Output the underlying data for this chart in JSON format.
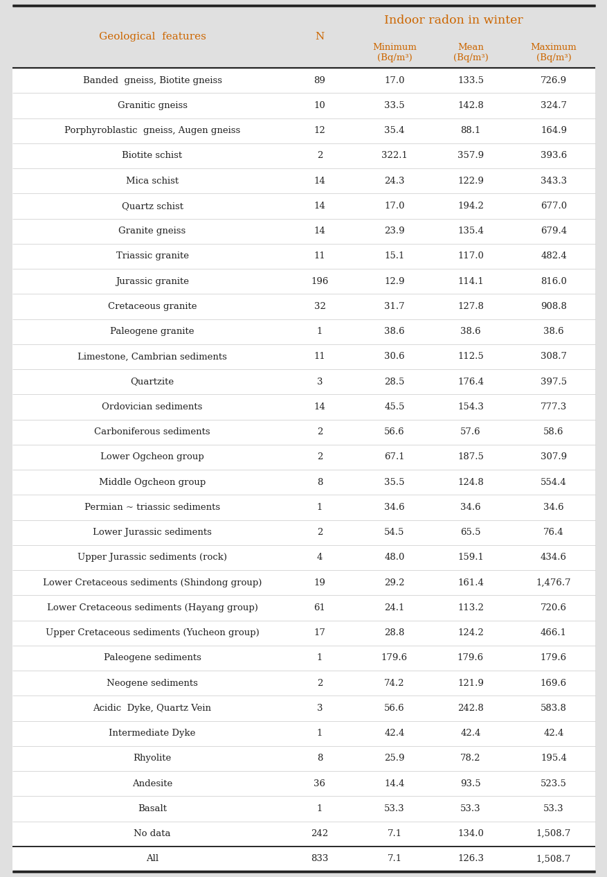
{
  "title_main": "Indoor radon in winter",
  "bg_color": "#e0e0e0",
  "title_color": "#cc6600",
  "header_text_color": "#cc6600",
  "body_text_color": "#222222",
  "line_color": "#222222",
  "rows": [
    [
      "Banded  gneiss, Biotite gneiss",
      "89",
      "17.0",
      "133.5",
      "726.9"
    ],
    [
      "Granitic gneiss",
      "10",
      "33.5",
      "142.8",
      "324.7"
    ],
    [
      "Porphyroblastic  gneiss, Augen gneiss",
      "12",
      "35.4",
      "88.1",
      "164.9"
    ],
    [
      "Biotite schist",
      "2",
      "322.1",
      "357.9",
      "393.6"
    ],
    [
      "Mica schist",
      "14",
      "24.3",
      "122.9",
      "343.3"
    ],
    [
      "Quartz schist",
      "14",
      "17.0",
      "194.2",
      "677.0"
    ],
    [
      "Granite gneiss",
      "14",
      "23.9",
      "135.4",
      "679.4"
    ],
    [
      "Triassic granite",
      "11",
      "15.1",
      "117.0",
      "482.4"
    ],
    [
      "Jurassic granite",
      "196",
      "12.9",
      "114.1",
      "816.0"
    ],
    [
      "Cretaceous granite",
      "32",
      "31.7",
      "127.8",
      "908.8"
    ],
    [
      "Paleogene granite",
      "1",
      "38.6",
      "38.6",
      "38.6"
    ],
    [
      "Limestone, Cambrian sediments",
      "11",
      "30.6",
      "112.5",
      "308.7"
    ],
    [
      "Quartzite",
      "3",
      "28.5",
      "176.4",
      "397.5"
    ],
    [
      "Ordovician sediments",
      "14",
      "45.5",
      "154.3",
      "777.3"
    ],
    [
      "Carboniferous sediments",
      "2",
      "56.6",
      "57.6",
      "58.6"
    ],
    [
      "Lower Ogcheon group",
      "2",
      "67.1",
      "187.5",
      "307.9"
    ],
    [
      "Middle Ogcheon group",
      "8",
      "35.5",
      "124.8",
      "554.4"
    ],
    [
      "Permian ~ triassic sediments",
      "1",
      "34.6",
      "34.6",
      "34.6"
    ],
    [
      "Lower Jurassic sediments",
      "2",
      "54.5",
      "65.5",
      "76.4"
    ],
    [
      "Upper Jurassic sediments (rock)",
      "4",
      "48.0",
      "159.1",
      "434.6"
    ],
    [
      "Lower Cretaceous sediments (Shindong group)",
      "19",
      "29.2",
      "161.4",
      "1,476.7"
    ],
    [
      "Lower Cretaceous sediments (Hayang group)",
      "61",
      "24.1",
      "113.2",
      "720.6"
    ],
    [
      "Upper Cretaceous sediments (Yucheon group)",
      "17",
      "28.8",
      "124.2",
      "466.1"
    ],
    [
      "Paleogene sediments",
      "1",
      "179.6",
      "179.6",
      "179.6"
    ],
    [
      "Neogene sediments",
      "2",
      "74.2",
      "121.9",
      "169.6"
    ],
    [
      "Acidic  Dyke, Quartz Vein",
      "3",
      "56.6",
      "242.8",
      "583.8"
    ],
    [
      "Intermediate Dyke",
      "1",
      "42.4",
      "42.4",
      "42.4"
    ],
    [
      "Rhyolite",
      "8",
      "25.9",
      "78.2",
      "195.4"
    ],
    [
      "Andesite",
      "36",
      "14.4",
      "93.5",
      "523.5"
    ],
    [
      "Basalt",
      "1",
      "53.3",
      "53.3",
      "53.3"
    ],
    [
      "No data",
      "242",
      "7.1",
      "134.0",
      "1,508.7"
    ],
    [
      "All",
      "833",
      "7.1",
      "126.3",
      "1,508.7"
    ]
  ]
}
